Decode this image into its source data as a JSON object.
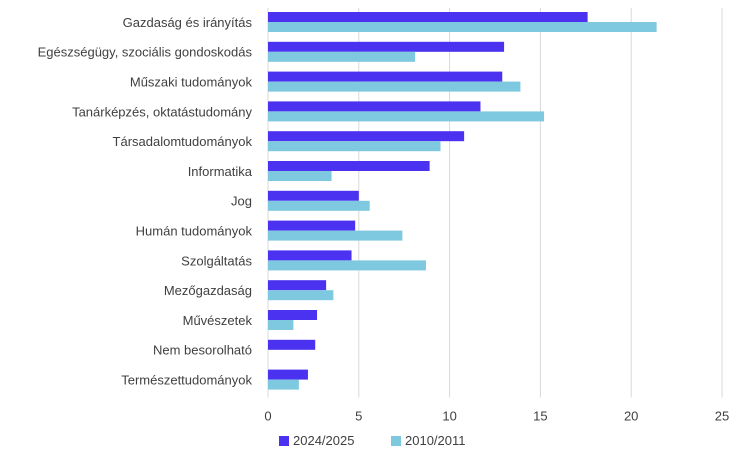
{
  "chart_data": {
    "type": "bar",
    "orientation": "horizontal",
    "categories": [
      "Gazdaság és irányítás",
      "Egészségügy, szociális gondoskodás",
      "Műszaki tudományok",
      "Tanárképzés, oktatástudomány",
      "Társadalomtudományok",
      "Informatika",
      "Jog",
      "Humán tudományok",
      "Szolgáltatás",
      "Mezőgazdaság",
      "Művészetek",
      "Nem besorolható",
      "Természettudományok"
    ],
    "series": [
      {
        "name": "2024/2025",
        "color": "#4b32f0",
        "values": [
          17.6,
          13.0,
          12.9,
          11.7,
          10.8,
          8.9,
          5.0,
          4.8,
          4.6,
          3.2,
          2.7,
          2.6,
          2.2
        ]
      },
      {
        "name": "2010/2011",
        "color": "#7ec8e0",
        "values": [
          21.4,
          8.1,
          13.9,
          15.2,
          9.5,
          3.5,
          5.6,
          7.4,
          8.7,
          3.6,
          1.4,
          0,
          1.7
        ]
      }
    ],
    "xlim": [
      0,
      25
    ],
    "xticks": [
      0,
      5,
      10,
      15,
      20,
      25
    ],
    "grid": true,
    "legend_position": "bottom"
  }
}
